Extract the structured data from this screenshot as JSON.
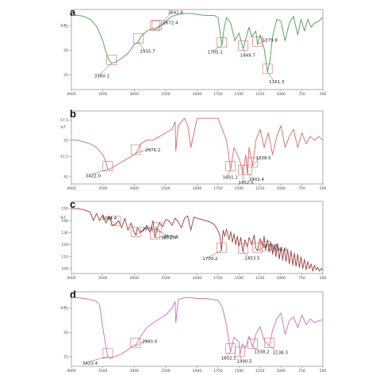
{
  "figure": {
    "panels": [
      "a",
      "b",
      "c",
      "d"
    ]
  },
  "chart_data": [
    {
      "type": "line",
      "panel": "a",
      "color": "#4e9a4e",
      "x_ticks": [
        "4000",
        "3500",
        "3000",
        "2500",
        "2000",
        "1750",
        "1500",
        "1250",
        "1000",
        "750",
        "500"
      ],
      "y_ticks": [
        "75",
        "50",
        "25"
      ],
      "ylim": [
        10,
        92
      ],
      "y_unit": "%T",
      "series": [
        {
          "x": [
            4000,
            3900,
            3800,
            3700,
            3600,
            3500,
            3450,
            3400,
            3360,
            3300,
            3200,
            3100,
            3000,
            2935,
            2900,
            2800,
            2700,
            2672,
            2641,
            2600,
            2500,
            2400,
            2300,
            2200,
            2100,
            2000,
            1900,
            1800,
            1750,
            1705,
            1680,
            1650,
            1600,
            1550,
            1500,
            1450,
            1420,
            1380,
            1350,
            1300,
            1279,
            1250,
            1200,
            1161,
            1130,
            1100,
            1050,
            1000,
            950,
            900,
            850,
            800,
            760,
            720,
            680,
            640,
            600,
            550,
            500
          ],
          "y": [
            87,
            86,
            85,
            82,
            75,
            60,
            48,
            40,
            37,
            38,
            42,
            47,
            56,
            59,
            64,
            70,
            73,
            72,
            73,
            74,
            80,
            85,
            87,
            88,
            88,
            87,
            86,
            86,
            84,
            55,
            72,
            84,
            78,
            60,
            68,
            52,
            62,
            74,
            64,
            70,
            56,
            66,
            52,
            28,
            40,
            64,
            82,
            80,
            60,
            78,
            85,
            66,
            82,
            70,
            82,
            74,
            78,
            80,
            84
          ]
        }
      ],
      "annotations": [
        {
          "label": "3360.1",
          "x": 3360
        },
        {
          "label": "2935.7",
          "x": 2935
        },
        {
          "label": "2672.4",
          "x": 2672
        },
        {
          "label": "2641.6",
          "x": 2641
        },
        {
          "label": "1705.1",
          "x": 1705
        },
        {
          "label": "1449.7",
          "x": 1450
        },
        {
          "label": "1279.8",
          "x": 1279
        },
        {
          "label": "1161.3",
          "x": 1161
        }
      ]
    },
    {
      "type": "line",
      "panel": "b",
      "color": "#d46a6a",
      "x_ticks": [
        "4000",
        "3500",
        "3000",
        "2500",
        "2000",
        "1750",
        "1500",
        "1250",
        "1000",
        "750",
        "500"
      ],
      "y_ticks": [
        "57.5",
        "52",
        "47.5",
        "42"
      ],
      "ylim": [
        40,
        60
      ],
      "y_unit": "%T",
      "series": [
        {
          "x": [
            4000,
            3900,
            3800,
            3700,
            3600,
            3500,
            3450,
            3422,
            3400,
            3300,
            3200,
            3100,
            3000,
            2976,
            2950,
            2900,
            2800,
            2700,
            2600,
            2500,
            2400,
            2350,
            2340,
            2300,
            2200,
            2150,
            2100,
            2000,
            1900,
            1800,
            1750,
            1700,
            1650,
            1601,
            1560,
            1500,
            1452,
            1420,
            1402,
            1380,
            1338,
            1300,
            1250,
            1200,
            1150,
            1100,
            1050,
            1000,
            950,
            900,
            850,
            800,
            750,
            700,
            650,
            600,
            550,
            500
          ],
          "y": [
            52,
            52,
            51.5,
            51,
            50,
            48,
            46,
            44,
            44,
            45,
            46,
            47,
            48,
            48.5,
            49,
            51,
            52,
            52,
            53,
            54,
            55,
            57,
            49,
            56,
            58,
            56,
            50,
            58,
            58,
            58,
            58,
            55,
            52,
            44,
            50,
            47,
            43,
            48,
            43,
            50,
            45,
            52,
            55,
            50,
            54,
            48,
            53,
            56,
            50,
            53,
            55,
            50,
            54,
            51,
            53,
            52,
            53,
            52
          ]
        }
      ],
      "annotations": [
        {
          "label": "3422.0",
          "x": 3422
        },
        {
          "label": "2976.2",
          "x": 2976
        },
        {
          "label": "1601.2",
          "x": 1601
        },
        {
          "label": "1452.5",
          "x": 1452
        },
        {
          "label": "1402.4",
          "x": 1402
        },
        {
          "label": "1338.5",
          "x": 1338
        }
      ]
    },
    {
      "type": "line",
      "panel": "c",
      "color": "#9b3d3d",
      "x_ticks": [
        "4000",
        "3500",
        "3000",
        "2500",
        "2000",
        "1750",
        "1500",
        "1250",
        "1000",
        "750",
        "500"
      ],
      "y_ticks": [
        "150",
        "140",
        "130",
        "120",
        "110",
        "100"
      ],
      "ylim": [
        96,
        156
      ],
      "y_unit": "%T",
      "series": [
        {
          "x": [
            4000,
            3900,
            3800,
            3700,
            3650,
            3600,
            3550,
            3500,
            3450,
            3400,
            3350,
            3294,
            3250,
            3200,
            3150,
            3100,
            3050,
            3000,
            2976,
            2950,
            2900,
            2850,
            2800,
            2750,
            2700,
            2672,
            2639,
            2600,
            2550,
            2500,
            2450,
            2400,
            2350,
            2300,
            2250,
            2200,
            2150,
            2100,
            2050,
            2000,
            1950,
            1900,
            1850,
            1800,
            1760,
            1730,
            1709,
            1690,
            1670,
            1650,
            1620,
            1600,
            1580,
            1560,
            1540,
            1520,
            1500,
            1480,
            1453,
            1430,
            1400,
            1380,
            1350,
            1320,
            1300,
            1279,
            1250,
            1220,
            1200,
            1186,
            1160,
            1140,
            1120,
            1100,
            1080,
            1060,
            1040,
            1020,
            1000,
            980,
            960,
            940,
            920,
            900,
            880,
            860,
            840,
            820,
            800,
            780,
            760,
            740,
            720,
            700,
            680,
            660,
            640,
            620,
            600,
            580,
            560,
            540,
            520,
            500
          ],
          "y": [
            150,
            150,
            149,
            147,
            140,
            146,
            140,
            145,
            138,
            144,
            136,
            137,
            140,
            134,
            142,
            132,
            138,
            130,
            128,
            134,
            130,
            132,
            136,
            130,
            140,
            126,
            132,
            138,
            135,
            141,
            140,
            136,
            142,
            139,
            134,
            142,
            144,
            132,
            143,
            142,
            141,
            140,
            139,
            137,
            133,
            128,
            115,
            132,
            127,
            133,
            124,
            131,
            122,
            129,
            120,
            127,
            119,
            126,
            114,
            124,
            118,
            126,
            120,
            128,
            117,
            115,
            125,
            119,
            127,
            116,
            124,
            114,
            122,
            112,
            120,
            110,
            121,
            108,
            118,
            107,
            117,
            106,
            116,
            104,
            115,
            103,
            113,
            102,
            112,
            101,
            110,
            100,
            108,
            99,
            106,
            100,
            104,
            98,
            103,
            99,
            101,
            98,
            100,
            99
          ]
        }
      ],
      "annotations": [
        {
          "label": "3294.4",
          "x": 3294
        },
        {
          "label": "2976.3",
          "x": 2976
        },
        {
          "label": "2672.4",
          "x": 2672
        },
        {
          "label": "2639.6",
          "x": 2639
        },
        {
          "label": "1709.2",
          "x": 1709
        },
        {
          "label": "1453.5",
          "x": 1453
        },
        {
          "label": "1279.8",
          "x": 1279
        },
        {
          "label": "1186.0",
          "x": 1186
        }
      ]
    },
    {
      "type": "line",
      "panel": "d",
      "color": "#c46ec4",
      "x_ticks": [
        "4000",
        "3500",
        "3000",
        "2500",
        "2000",
        "1750",
        "1500",
        "1250",
        "1000",
        "750",
        "500"
      ],
      "y_ticks": [
        "75",
        "50",
        "25"
      ],
      "ylim": [
        15,
        92
      ],
      "y_unit": "%T",
      "series": [
        {
          "x": [
            4000,
            3900,
            3800,
            3700,
            3600,
            3550,
            3500,
            3450,
            3421,
            3380,
            3300,
            3200,
            3100,
            3000,
            2980,
            2950,
            2900,
            2800,
            2700,
            2600,
            2500,
            2400,
            2350,
            2340,
            2300,
            2200,
            2100,
            2000,
            1900,
            1800,
            1750,
            1700,
            1650,
            1602,
            1560,
            1500,
            1490,
            1460,
            1420,
            1380,
            1338,
            1300,
            1250,
            1200,
            1138,
            1100,
            1050,
            1000,
            950,
            900,
            850,
            800,
            750,
            700,
            650,
            600,
            550,
            500
          ],
          "y": [
            86,
            86,
            85,
            84,
            82,
            78,
            55,
            35,
            25,
            24,
            25,
            28,
            32,
            37,
            36,
            40,
            46,
            55,
            60,
            64,
            68,
            75,
            82,
            60,
            84,
            86,
            86,
            85,
            85,
            84,
            83,
            76,
            58,
            30,
            45,
            40,
            27,
            38,
            34,
            46,
            35,
            48,
            56,
            42,
            36,
            52,
            64,
            70,
            48,
            62,
            66,
            55,
            68,
            58,
            64,
            60,
            62,
            63
          ]
        }
      ],
      "annotations": [
        {
          "label": "3421.4",
          "x": 3421
        },
        {
          "label": "2980.0",
          "x": 2980
        },
        {
          "label": "1602.5",
          "x": 1602
        },
        {
          "label": "1490.5",
          "x": 1490
        },
        {
          "label": "1338.2",
          "x": 1338
        },
        {
          "label": "1138.3",
          "x": 1138
        }
      ]
    }
  ]
}
